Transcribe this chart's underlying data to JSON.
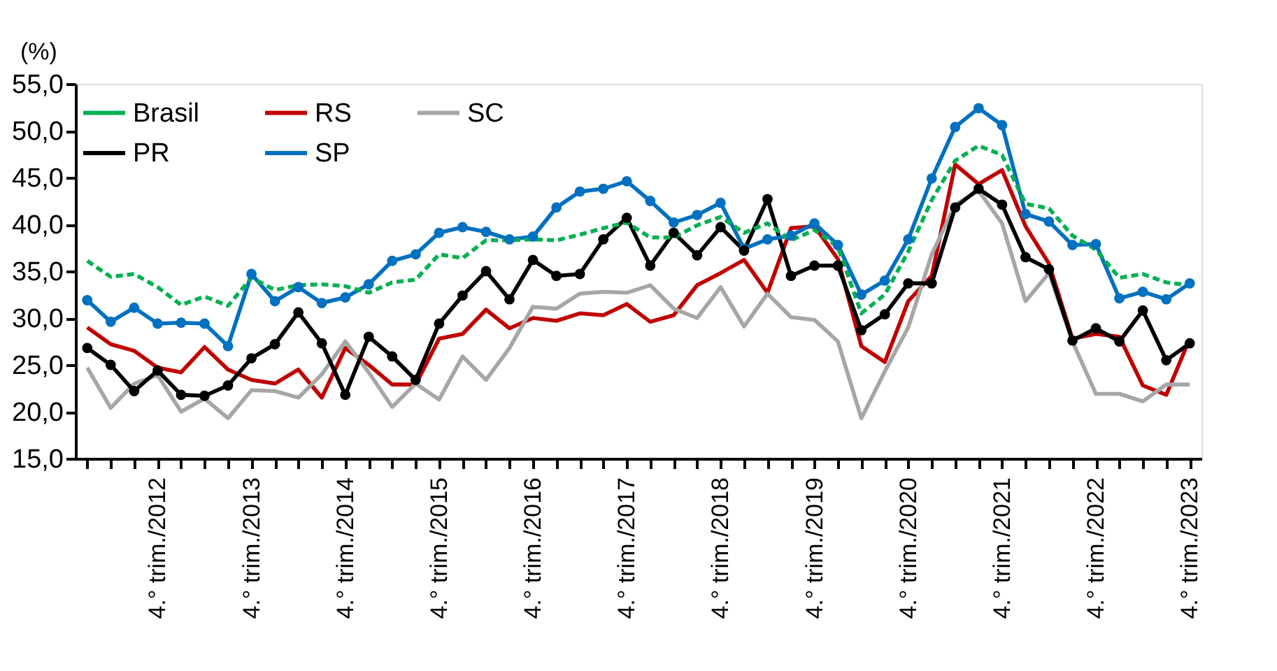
{
  "chart_data": {
    "type": "line",
    "ylabel": "(%)",
    "ylim": [
      15,
      55
    ],
    "yticks": [
      {
        "value": 15,
        "label": "15,0"
      },
      {
        "value": 20,
        "label": "20,0"
      },
      {
        "value": 25,
        "label": "25,0"
      },
      {
        "value": 30,
        "label": "30,0"
      },
      {
        "value": 35,
        "label": "35,0"
      },
      {
        "value": 40,
        "label": "40,0"
      },
      {
        "value": 45,
        "label": "45,0"
      },
      {
        "value": 50,
        "label": "50,0"
      },
      {
        "value": 55,
        "label": "55,0"
      }
    ],
    "categories": [
      null,
      null,
      null,
      "4.° trim./2012",
      null,
      null,
      null,
      "4.° trim./2013",
      null,
      null,
      null,
      "4.° trim./2014",
      null,
      null,
      null,
      "4.° trim./2015",
      null,
      null,
      null,
      "4.° trim./2016",
      null,
      null,
      null,
      "4.° trim./2017",
      null,
      null,
      null,
      "4.° trim./2018",
      null,
      null,
      null,
      "4.° trim./2019",
      null,
      null,
      null,
      "4.° trim./2020",
      null,
      null,
      null,
      "4.° trim./2021",
      null,
      null,
      null,
      "4.° trim./2022",
      null,
      null,
      null,
      "4.° trim./2023"
    ],
    "legend": "top left",
    "grid": false,
    "series": [
      {
        "name": "Brasil",
        "color": "#00b050",
        "line_style": "dashed",
        "marker": "none",
        "values": [
          36.1,
          34.4,
          34.7,
          33.3,
          31.4,
          32.3,
          31.3,
          34.3,
          33.0,
          33.5,
          33.6,
          33.4,
          32.7,
          33.8,
          34.1,
          36.8,
          36.4,
          38.3,
          38.3,
          38.4,
          38.3,
          38.9,
          39.6,
          40.2,
          38.6,
          38.6,
          39.9,
          40.8,
          39.1,
          40.1,
          38.3,
          39.4,
          37.6,
          30.5,
          32.5,
          37.1,
          42.6,
          46.8,
          48.4,
          47.4,
          42.2,
          41.7,
          38.8,
          37.3,
          34.3,
          34.7,
          33.8,
          33.5
        ]
      },
      {
        "name": "RS",
        "color": "#c00000",
        "line_style": "solid",
        "marker": "none",
        "values": [
          29.0,
          27.2,
          26.5,
          24.7,
          24.2,
          26.9,
          24.5,
          23.4,
          23.0,
          24.5,
          21.5,
          26.8,
          25.0,
          22.9,
          22.9,
          27.8,
          28.3,
          30.9,
          28.9,
          30.0,
          29.7,
          30.5,
          30.3,
          31.5,
          29.6,
          30.3,
          33.5,
          34.8,
          36.2,
          32.7,
          39.6,
          39.8,
          36.3,
          27.0,
          25.3,
          31.8,
          34.5,
          46.4,
          44.3,
          45.8,
          39.8,
          35.8,
          27.8,
          28.3,
          28.0,
          22.8,
          21.8,
          27.8
        ]
      },
      {
        "name": "SC",
        "color": "#a6a6a6",
        "line_style": "solid",
        "marker": "none",
        "values": [
          24.7,
          20.4,
          23.0,
          23.9,
          20.0,
          21.4,
          19.3,
          22.3,
          22.2,
          21.5,
          24.0,
          27.5,
          24.2,
          20.5,
          23.0,
          21.3,
          25.9,
          23.4,
          26.8,
          31.2,
          31.0,
          32.6,
          32.8,
          32.7,
          33.5,
          31.0,
          30.0,
          33.3,
          29.1,
          32.6,
          30.1,
          29.8,
          27.5,
          19.3,
          24.3,
          29.0,
          36.8,
          42.1,
          43.6,
          40.1,
          31.8,
          34.8,
          27.5,
          21.9,
          21.9,
          21.1,
          22.9,
          22.9
        ]
      },
      {
        "name": "PR",
        "color": "#000000",
        "line_style": "solid",
        "marker": "circle",
        "values": [
          26.8,
          25.0,
          22.2,
          24.4,
          21.8,
          21.7,
          22.8,
          25.7,
          27.2,
          30.6,
          27.3,
          21.8,
          28.0,
          25.9,
          23.4,
          29.4,
          32.4,
          35.0,
          32.0,
          36.2,
          34.5,
          34.7,
          38.4,
          40.7,
          35.6,
          39.1,
          36.7,
          39.7,
          37.2,
          42.7,
          34.5,
          35.6,
          35.6,
          28.7,
          30.4,
          33.7,
          33.7,
          41.8,
          43.8,
          42.1,
          36.5,
          35.2,
          27.6,
          28.9,
          27.5,
          30.8,
          25.5,
          27.3
        ]
      },
      {
        "name": "SP",
        "color": "#0070c0",
        "line_style": "solid",
        "marker": "circle",
        "values": [
          31.9,
          29.6,
          31.1,
          29.4,
          29.5,
          29.4,
          27.0,
          34.7,
          31.8,
          33.3,
          31.6,
          32.2,
          33.6,
          36.1,
          36.8,
          39.1,
          39.7,
          39.2,
          38.4,
          38.7,
          41.8,
          43.5,
          43.8,
          44.6,
          42.5,
          40.2,
          41.0,
          42.3,
          37.4,
          38.4,
          38.8,
          40.1,
          37.8,
          32.5,
          34.0,
          38.4,
          44.9,
          50.4,
          52.4,
          50.6,
          41.1,
          40.3,
          37.8,
          37.9,
          32.1,
          32.8,
          32.0,
          33.7
        ]
      }
    ]
  }
}
